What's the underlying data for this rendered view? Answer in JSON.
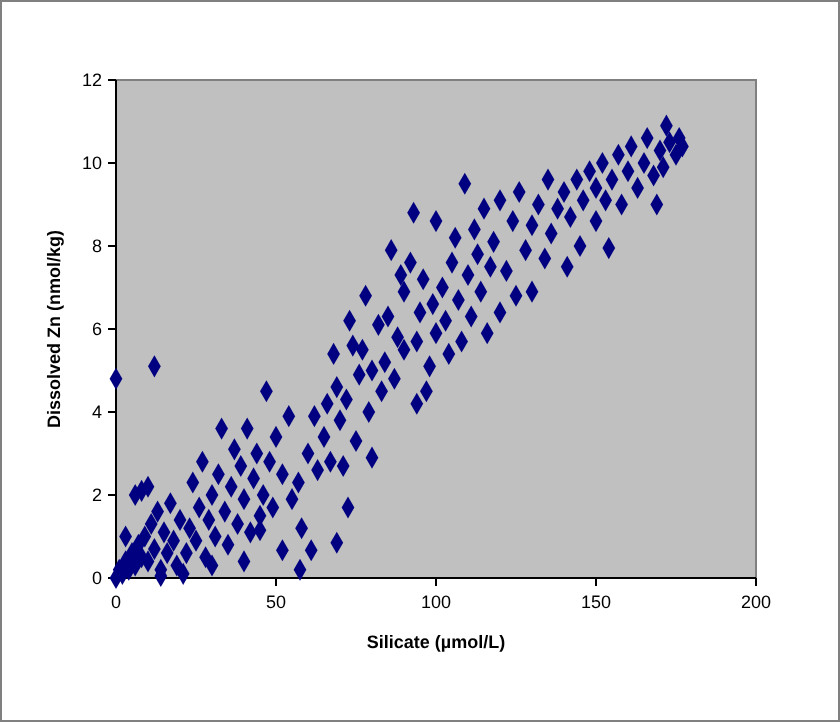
{
  "chart_data": {
    "type": "scatter",
    "xlabel": "Silicate (µmol/L)",
    "ylabel": "Dissolved Zn (nmol/kg)",
    "xlim": [
      0,
      200
    ],
    "xticks": [
      0,
      50,
      100,
      150,
      200
    ],
    "ylim": [
      0,
      12
    ],
    "yticks": [
      0,
      2,
      4,
      6,
      8,
      10,
      12
    ],
    "grid": false,
    "marker": "diamond",
    "series": [
      {
        "color": "#000080",
        "x": [
          0,
          1,
          2,
          3,
          4,
          5,
          6,
          7,
          8,
          9,
          10,
          11,
          12,
          13,
          14,
          15,
          16,
          17,
          18,
          19,
          20,
          3,
          6,
          8,
          10,
          0,
          12,
          14,
          21,
          22,
          23,
          24,
          25,
          26,
          27,
          28,
          29,
          30,
          31,
          32,
          33,
          34,
          35,
          36,
          37,
          38,
          39,
          40,
          41,
          42,
          43,
          44,
          45,
          46,
          47,
          48,
          49,
          50,
          40,
          30,
          52,
          54,
          55,
          57,
          58,
          45,
          52,
          57.5,
          61,
          69,
          72.5,
          60,
          62,
          63,
          65,
          66,
          67,
          68,
          69,
          70,
          71,
          72,
          73,
          74,
          75,
          76,
          77,
          78,
          79,
          80,
          80,
          82,
          83,
          84,
          85,
          86,
          87,
          88,
          89,
          90,
          90,
          92,
          93,
          94,
          94,
          95,
          96,
          97,
          98,
          99,
          100,
          100,
          102,
          103,
          104,
          105,
          106,
          107,
          108,
          109,
          110,
          111,
          112,
          113,
          114,
          115,
          116,
          117,
          118,
          120,
          120,
          122,
          124,
          125,
          126,
          128,
          130,
          130,
          132,
          134,
          135,
          136,
          138,
          140,
          141,
          142,
          144,
          145,
          146,
          148,
          150,
          150,
          152,
          153,
          154,
          155,
          157,
          158,
          160,
          161,
          163,
          165,
          166,
          168,
          169,
          170,
          171,
          172,
          173,
          175,
          176,
          177
        ],
        "values": [
          0,
          0.2,
          0.1,
          0.4,
          0.2,
          0.6,
          0.3,
          0.8,
          0.5,
          1.0,
          0.4,
          1.3,
          0.7,
          1.6,
          0.2,
          1.1,
          0.6,
          1.8,
          0.9,
          0.3,
          1.4,
          1.0,
          2.0,
          2.1,
          2.2,
          4.8,
          5.1,
          0.05,
          0.1,
          0.6,
          1.2,
          2.3,
          0.9,
          1.7,
          2.8,
          0.5,
          1.4,
          2.0,
          1.0,
          2.5,
          3.6,
          1.6,
          0.8,
          2.2,
          3.1,
          1.3,
          2.7,
          1.9,
          3.6,
          1.1,
          2.4,
          3.0,
          1.5,
          2.0,
          4.5,
          2.8,
          1.7,
          3.4,
          0.4,
          0.3,
          2.5,
          3.9,
          1.9,
          2.3,
          1.2,
          1.15,
          0.67,
          0.2,
          0.67,
          0.85,
          1.7,
          3.0,
          3.9,
          2.6,
          3.4,
          4.2,
          2.8,
          5.4,
          4.6,
          3.8,
          2.7,
          4.3,
          6.2,
          5.6,
          3.3,
          4.9,
          5.5,
          6.8,
          4.0,
          2.9,
          5.0,
          6.1,
          4.5,
          5.2,
          6.3,
          7.9,
          4.8,
          5.8,
          7.3,
          5.5,
          6.9,
          7.6,
          8.8,
          4.2,
          5.7,
          6.4,
          7.2,
          4.5,
          5.1,
          6.6,
          8.6,
          5.9,
          7.0,
          6.2,
          5.4,
          7.6,
          8.2,
          6.7,
          5.7,
          9.5,
          7.3,
          6.3,
          8.4,
          7.8,
          6.9,
          8.9,
          5.9,
          7.5,
          8.1,
          6.4,
          9.1,
          7.4,
          8.6,
          6.8,
          9.3,
          7.9,
          8.5,
          6.9,
          9.0,
          7.7,
          9.6,
          8.3,
          8.9,
          9.3,
          7.5,
          8.7,
          9.6,
          8.0,
          9.1,
          9.8,
          8.6,
          9.4,
          10.0,
          9.1,
          7.95,
          9.6,
          10.2,
          9.0,
          9.8,
          10.4,
          9.4,
          10.0,
          10.6,
          9.7,
          9.0,
          10.3,
          9.9,
          10.9,
          10.5,
          10.2,
          10.6,
          10.4
        ]
      }
    ]
  }
}
